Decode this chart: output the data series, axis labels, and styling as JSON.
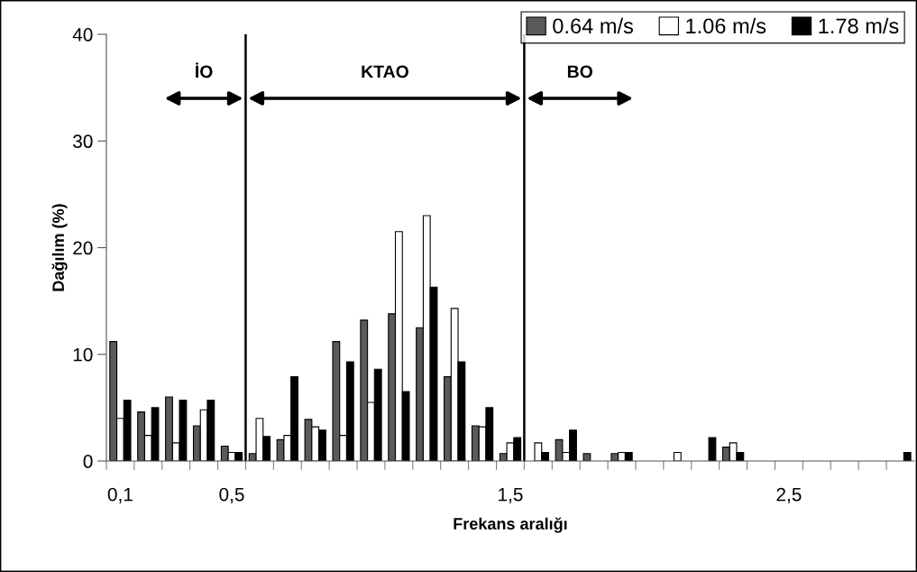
{
  "chart_data": {
    "type": "bar",
    "xlabel": "Frekans aralığı",
    "ylabel": "Dağılım (%)",
    "x": [
      0.1,
      0.2,
      0.3,
      0.4,
      0.5,
      0.6,
      0.7,
      0.8,
      0.9,
      1.0,
      1.1,
      1.2,
      1.3,
      1.4,
      1.5,
      1.6,
      1.7,
      1.8,
      1.9,
      2.0,
      2.1,
      2.2,
      2.3,
      2.4,
      2.5,
      2.6,
      2.7,
      2.8,
      2.9
    ],
    "xlim": [
      0.05,
      2.95
    ],
    "xticks": [
      {
        "value": 0.1,
        "label": "0,1"
      },
      {
        "value": 0.5,
        "label": "0,5"
      },
      {
        "value": 1.5,
        "label": "1,5"
      },
      {
        "value": 2.5,
        "label": "2,5"
      },
      {
        "value": 0.05,
        "label": null
      },
      {
        "value": 0.15,
        "label": null
      },
      {
        "value": 0.25,
        "label": null
      },
      {
        "value": 0.35,
        "label": null
      },
      {
        "value": 0.45,
        "label": null
      },
      {
        "value": 0.55,
        "label": null
      },
      {
        "value": 0.65,
        "label": null
      },
      {
        "value": 0.75,
        "label": null
      },
      {
        "value": 0.85,
        "label": null
      },
      {
        "value": 0.95,
        "label": null
      },
      {
        "value": 1.05,
        "label": null
      },
      {
        "value": 1.15,
        "label": null
      },
      {
        "value": 1.25,
        "label": null
      },
      {
        "value": 1.35,
        "label": null
      },
      {
        "value": 1.45,
        "label": null
      },
      {
        "value": 1.55,
        "label": null
      },
      {
        "value": 1.65,
        "label": null
      },
      {
        "value": 1.75,
        "label": null
      },
      {
        "value": 1.85,
        "label": null
      },
      {
        "value": 1.95,
        "label": null
      },
      {
        "value": 2.05,
        "label": null
      },
      {
        "value": 2.15,
        "label": null
      },
      {
        "value": 2.25,
        "label": null
      },
      {
        "value": 2.35,
        "label": null
      },
      {
        "value": 2.45,
        "label": null
      },
      {
        "value": 2.55,
        "label": null
      },
      {
        "value": 2.65,
        "label": null
      },
      {
        "value": 2.75,
        "label": null
      },
      {
        "value": 2.85,
        "label": null
      }
    ],
    "series": [
      {
        "name": "0.64 m/s",
        "color": "#5a5a5a",
        "values": [
          11.2,
          4.6,
          6.0,
          3.3,
          1.4,
          0.7,
          2.0,
          3.9,
          11.2,
          13.2,
          13.8,
          12.5,
          7.9,
          3.3,
          0.7,
          null,
          2.0,
          0.7,
          0.7,
          null,
          null,
          null,
          1.3,
          null,
          null,
          null,
          null,
          null,
          null
        ]
      },
      {
        "name": "1.06 m/s",
        "color": "#ffffff",
        "values": [
          4.0,
          2.4,
          1.7,
          4.8,
          0.8,
          4.0,
          2.4,
          3.2,
          2.4,
          5.5,
          21.5,
          23.0,
          14.3,
          3.2,
          1.7,
          1.7,
          0.8,
          null,
          0.8,
          null,
          0.8,
          null,
          1.7,
          null,
          null,
          null,
          null,
          null,
          null
        ]
      },
      {
        "name": "1.78 m/s",
        "color": "#000000",
        "values": [
          5.7,
          5.0,
          5.7,
          5.7,
          0.8,
          2.3,
          7.9,
          2.9,
          9.3,
          8.6,
          6.5,
          16.3,
          9.3,
          5.0,
          2.2,
          0.8,
          2.9,
          null,
          0.8,
          null,
          null,
          2.2,
          0.8,
          null,
          null,
          null,
          null,
          null,
          0.8
        ]
      }
    ],
    "ylim": [
      0,
      40
    ],
    "yticks": [
      0,
      10,
      20,
      30,
      40
    ],
    "ref_lines": [
      {
        "axis": "x",
        "value": 0.55,
        "color": "#000000"
      },
      {
        "axis": "x",
        "value": 1.55,
        "color": "#000000"
      }
    ],
    "annotations": [
      "İO",
      "KTAO",
      "BO"
    ],
    "legend": "top right",
    "grid": false
  }
}
